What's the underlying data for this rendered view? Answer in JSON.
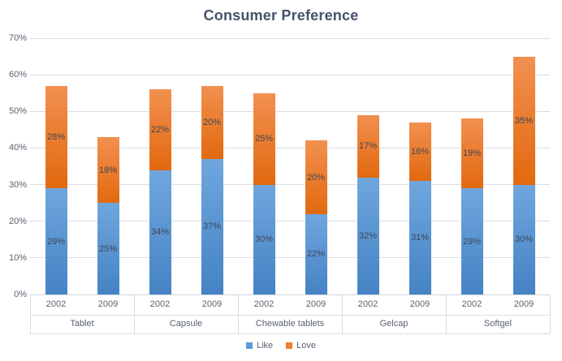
{
  "chart_data": {
    "type": "bar",
    "stacked": true,
    "title": "Consumer Preference",
    "groups": [
      "Tablet",
      "Capsule",
      "Chewable tablets",
      "Gelcap",
      "Softgel"
    ],
    "years": [
      "2002",
      "2009"
    ],
    "categories": [
      "Tablet 2002",
      "Tablet 2009",
      "Capsule 2002",
      "Capsule 2009",
      "Chewable tablets 2002",
      "Chewable tablets 2009",
      "Gelcap 2002",
      "Gelcap 2009",
      "Softgel 2002",
      "Softgel 2009"
    ],
    "series": [
      {
        "name": "Like",
        "values": [
          29,
          25,
          34,
          37,
          30,
          22,
          32,
          31,
          29,
          30
        ],
        "labels": [
          "29%",
          "25%",
          "34%",
          "37%",
          "30%",
          "22%",
          "32%",
          "31%",
          "29%",
          "30%"
        ],
        "color_top": "#6FA6DE",
        "color_bottom": "#4583C4",
        "legend_color": "#5B9BD5"
      },
      {
        "name": "Love",
        "values": [
          28,
          18,
          22,
          20,
          25,
          20,
          17,
          16,
          19,
          35
        ],
        "labels": [
          "28%",
          "18%",
          "22%",
          "20%",
          "25%",
          "20%",
          "17%",
          "16%",
          "19%",
          "35%"
        ],
        "color_top": "#F29050",
        "color_bottom": "#E2690F",
        "legend_color": "#ED7D31"
      }
    ],
    "ylim": [
      0,
      70
    ],
    "ytick_step": 10,
    "ytick_labels": [
      "0%",
      "10%",
      "20%",
      "30%",
      "40%",
      "50%",
      "60%",
      "70%"
    ],
    "grid": true,
    "legend_position": "bottom-center",
    "colors": {
      "title": "#44546A",
      "axis_text": "#5A6170",
      "data_label_text": "#3E4455",
      "gridline": "#D9DDE4"
    }
  }
}
